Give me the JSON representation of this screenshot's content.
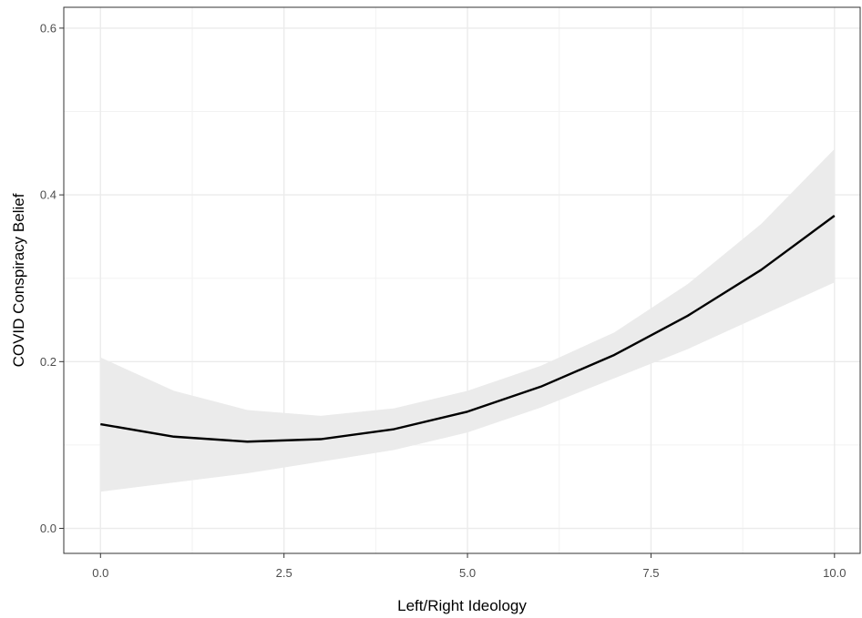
{
  "chart_data": {
    "type": "line",
    "xlabel": "Left/Right Ideology",
    "ylabel": "COVID Conspiracy Belief",
    "xlim": [
      -0.5,
      10.35
    ],
    "ylim": [
      -0.03,
      0.625
    ],
    "x_ticks": [
      {
        "value": 0,
        "label": "0.0"
      },
      {
        "value": 2.5,
        "label": "2.5"
      },
      {
        "value": 5,
        "label": "5.0"
      },
      {
        "value": 7.5,
        "label": "7.5"
      },
      {
        "value": 10,
        "label": "10.0"
      }
    ],
    "y_ticks": [
      {
        "value": 0,
        "label": "0.0"
      },
      {
        "value": 0.2,
        "label": "0.2"
      },
      {
        "value": 0.4,
        "label": "0.4"
      },
      {
        "value": 0.6,
        "label": "0.6"
      }
    ],
    "grid": true,
    "series": [
      {
        "x": [
          0,
          1,
          2,
          3,
          4,
          5,
          6,
          7,
          8,
          9,
          10
        ],
        "y": [
          0.125,
          0.11,
          0.104,
          0.107,
          0.119,
          0.14,
          0.17,
          0.208,
          0.255,
          0.31,
          0.375
        ],
        "lower": [
          0.044,
          0.055,
          0.066,
          0.08,
          0.094,
          0.115,
          0.145,
          0.18,
          0.215,
          0.255,
          0.295
        ],
        "upper": [
          0.205,
          0.165,
          0.142,
          0.135,
          0.144,
          0.165,
          0.195,
          0.235,
          0.293,
          0.365,
          0.455
        ],
        "line_color": "#000000",
        "band_color": "#ebebeb"
      }
    ]
  }
}
